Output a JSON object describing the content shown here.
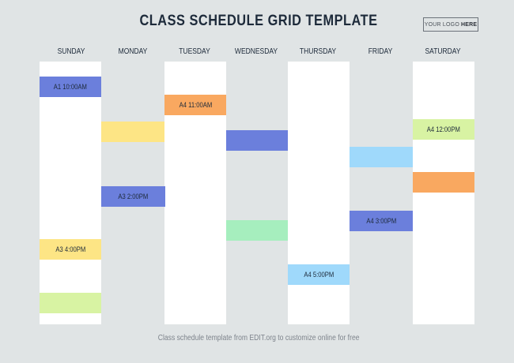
{
  "header": {
    "title": "CLASS SCHEDULE GRID TEMPLATE",
    "logo_prefix": "YOUR LOGO",
    "logo_bold": "HERE"
  },
  "days": [
    "SUNDAY",
    "MONDAY",
    "TUESDAY",
    "WEDNESDAY",
    "THURSDAY",
    "FRIDAY",
    "SATURDAY"
  ],
  "classes": {
    "sunday_a1": "A1 10:00AM",
    "sunday_a3": "A3 4:00PM",
    "monday_a3": "A3 2:00PM",
    "tuesday_a4": "A4 11:00AM",
    "thursday_a4": "A4 5:00PM",
    "friday_a4": "A4 3:00PM",
    "saturday_a4": "A4 12:00PM"
  },
  "colors": {
    "background": "#e0e4e5",
    "column": "#ffffff",
    "blue": "#6b7fdc",
    "orange": "#f9a860",
    "yellow": "#fde585",
    "green_light": "#d8f3a3",
    "mint": "#a6eebe",
    "sky": "#9fd9fb"
  },
  "footer": {
    "text": "Class schedule template from EDIT.org to customize online for free"
  }
}
